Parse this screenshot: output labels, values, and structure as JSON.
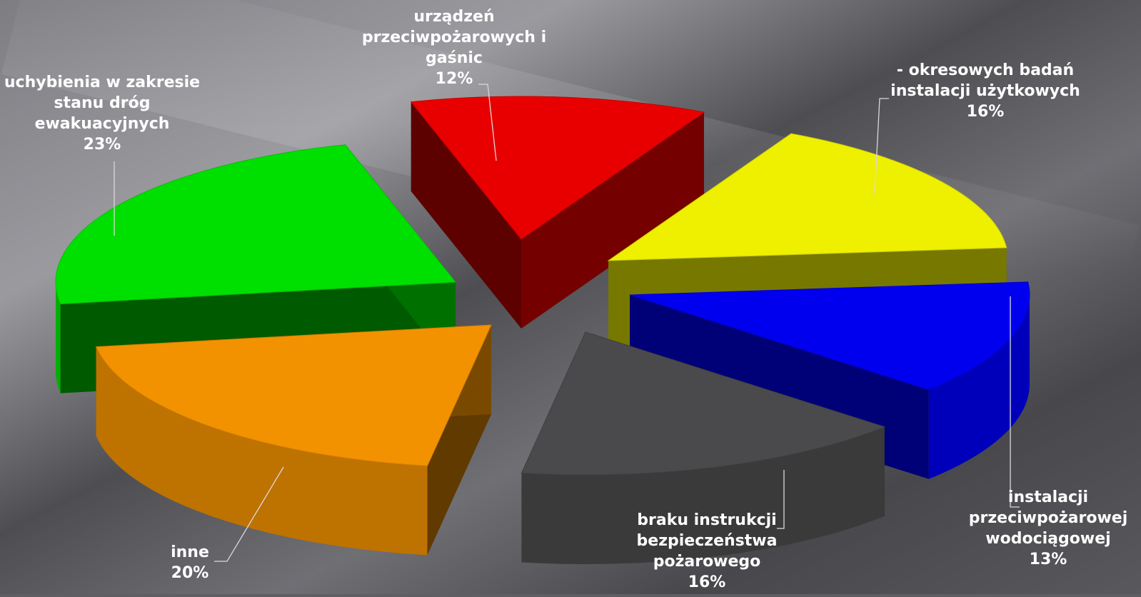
{
  "chart_data": {
    "type": "pie",
    "style": "3d-exploded",
    "title": "",
    "slices": [
      {
        "lines": [
          "urządzeń",
          "przeciwpożarowych i",
          "gaśnic"
        ],
        "percent_label": "12%",
        "value": 12,
        "color": "#e80000"
      },
      {
        "lines": [
          "- okresowych badań",
          "instalacji użytkowych"
        ],
        "percent_label": "16%",
        "value": 16,
        "color": "#eef000"
      },
      {
        "lines": [
          "instalacji",
          "przeciwpożarowej",
          "wodociągowej"
        ],
        "percent_label": "13%",
        "value": 13,
        "color": "#0000ee"
      },
      {
        "lines": [
          "braku instrukcji",
          "bezpieczeństwa",
          "pożarowego"
        ],
        "percent_label": "16%",
        "value": 16,
        "color": "#4a4a4c"
      },
      {
        "lines": [
          "inne"
        ],
        "percent_label": "20%",
        "value": 20,
        "color": "#f39200"
      },
      {
        "lines": [
          "uchybienia w zakresie",
          "stanu dróg",
          "ewakuacyjnych"
        ],
        "percent_label": "23%",
        "value": 23,
        "color": "#00e000"
      }
    ]
  }
}
